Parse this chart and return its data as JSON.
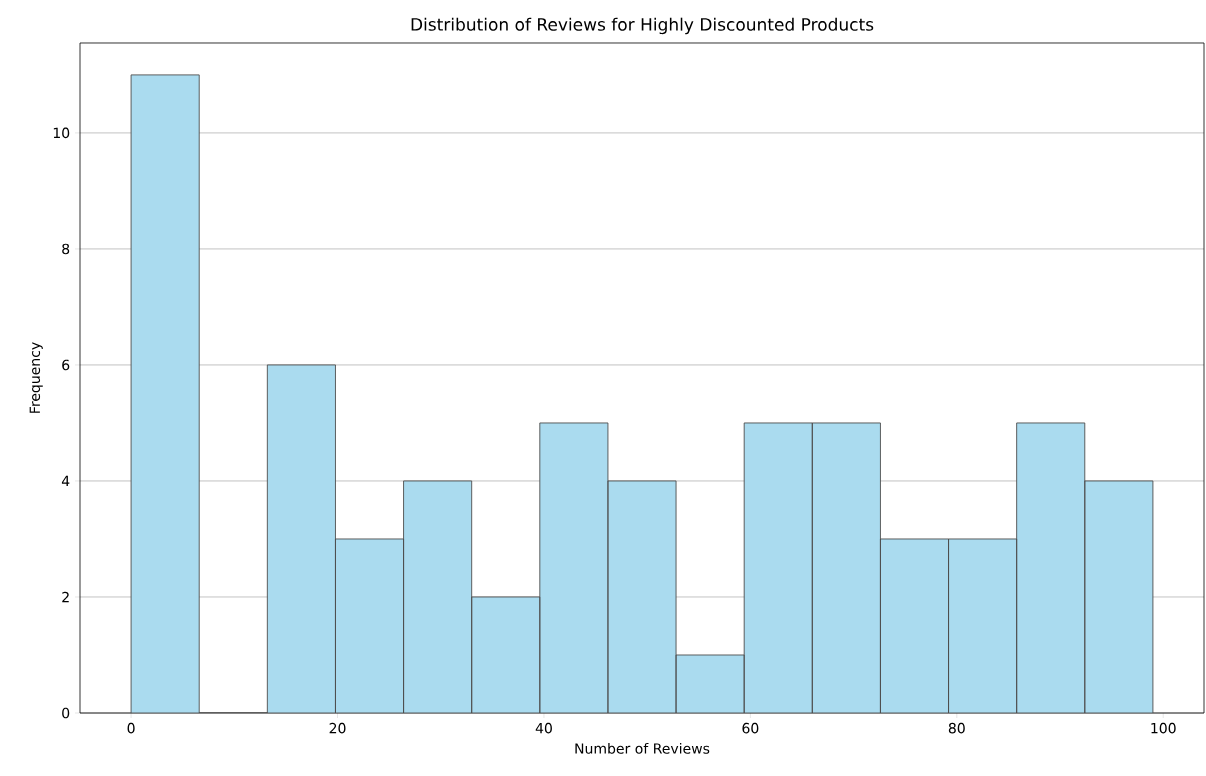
{
  "chart_data": {
    "type": "histogram",
    "title": "Distribution of Reviews for Highly Discounted Products",
    "xlabel": "Number of Reviews",
    "ylabel": "Frequency",
    "bins": [
      0,
      6.6,
      13.2,
      19.8,
      26.4,
      33,
      39.6,
      46.2,
      52.8,
      59.4,
      66,
      72.6,
      79.2,
      85.8,
      92.4,
      99
    ],
    "values": [
      11,
      0,
      6,
      3,
      4,
      2,
      5,
      4,
      1,
      5,
      5,
      3,
      3,
      5,
      4
    ],
    "color": "#aadbef",
    "xlim": [
      -4.95,
      103.95
    ],
    "ylim": [
      0,
      11.55
    ],
    "xticks": [
      0,
      20,
      40,
      60,
      80,
      100
    ],
    "yticks": [
      0,
      2,
      4,
      6,
      8,
      10
    ],
    "grid": "y"
  }
}
